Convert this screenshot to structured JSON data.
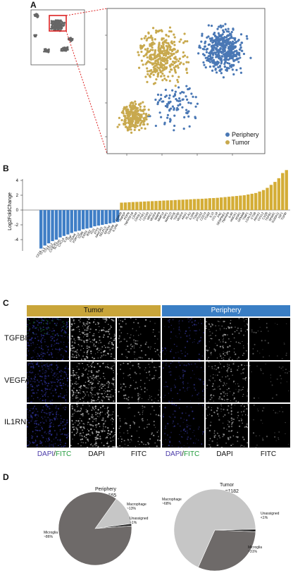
{
  "panels": {
    "a": "A",
    "b": "B",
    "c": "C",
    "d": "D"
  },
  "panel_a": {
    "legend": [
      {
        "label": "Periphery",
        "color": "#4a78b5"
      },
      {
        "label": "Tumor",
        "color": "#c8a94e"
      }
    ]
  },
  "panel_b": {
    "ylabel": "Log2FoldChange",
    "yticks": [
      "4",
      "2",
      "0",
      "-2",
      "-4"
    ],
    "colors": {
      "negative": "#3f7ec6",
      "positive": "#d4ad36"
    },
    "genes_neg": [
      "CD14",
      "CCL3",
      "CCL4",
      "CCL2",
      "CX3CR1",
      "SLC2A5",
      "CXCL8",
      "IL1B",
      "TNF",
      "ITGAM",
      "P2RY12",
      "CD86",
      "EGR3",
      "IER2",
      "FOS",
      "ATF3",
      "HAVCR2",
      "SELPLG",
      "GPR34",
      "S100A8",
      "IL1RN"
    ],
    "genes_pos": [
      "ADAM9",
      "ANPEP",
      "PDPN",
      "TNFRSF1B",
      "CD44",
      "CHI3L1",
      "LYVE1",
      "CD163",
      "MRC1",
      "VEGFA",
      "MMP9",
      "MMP14",
      "SPP1",
      "MARCO",
      "APOE",
      "TGFBI",
      "VEGFA",
      "ARG1",
      "PLAU",
      "IL1RN",
      "TGM2",
      "PTGS2",
      "CD274",
      "ITGB2",
      "IL10",
      "CCL18",
      "FN1",
      "SERPINE1",
      "TNFAIP6",
      "IL4R",
      "HMOX1",
      "MSR1",
      "GPNMB",
      "TIMP1",
      "LGALS3",
      "CTSB",
      "ANXA1",
      "CXCL2",
      "C1QB",
      "TGFB1",
      "SPARC",
      "S100A11",
      "IGF1",
      "TGFBI"
    ],
    "chart_data": {
      "type": "bar",
      "ylabel": "Log2FoldChange",
      "ylim": [
        -5,
        6
      ],
      "negative_values": [
        -5.2,
        -4.8,
        -4.5,
        -4.2,
        -4.0,
        -3.7,
        -3.5,
        -3.3,
        -3.1,
        -2.9,
        -2.8,
        -2.6,
        -2.5,
        -2.4,
        -2.2,
        -2.1,
        -2.0,
        -1.9,
        -1.8,
        -1.7,
        -1.6
      ],
      "positive_values": [
        1.0,
        1.02,
        1.05,
        1.08,
        1.1,
        1.12,
        1.15,
        1.18,
        1.2,
        1.22,
        1.25,
        1.28,
        1.3,
        1.32,
        1.35,
        1.38,
        1.4,
        1.42,
        1.45,
        1.48,
        1.5,
        1.52,
        1.55,
        1.6,
        1.62,
        1.65,
        1.7,
        1.75,
        1.8,
        1.85,
        1.9,
        1.95,
        2.0,
        2.1,
        2.2,
        2.3,
        2.5,
        2.7,
        3.0,
        3.4,
        3.8,
        4.3,
        5.0,
        5.4
      ]
    }
  },
  "panel_c": {
    "headers": {
      "tumor": "Tumor",
      "periphery": "Periphery"
    },
    "header_colors": {
      "tumor": "#c9a53a",
      "periphery": "#3a7ec4"
    },
    "rows": [
      "TGFBI",
      "VEGFA",
      "IL1RN"
    ],
    "footer": {
      "dapi_a": "DAPI",
      "slash": "/",
      "fitc_a": "FITC",
      "dapi": "DAPI",
      "fitc": "FITC"
    }
  },
  "panel_d": {
    "periphery": {
      "title": "Periphery",
      "n": "n",
      "n_sub": "(cells)",
      "n_val": "=665",
      "macrophage": "Macrophage",
      "macrophage_pct": "~13%",
      "unassigned": "Unassigned",
      "unassigned_pct": "~1%",
      "microglia": "Microglia",
      "microglia_pct": "~86%"
    },
    "tumor": {
      "title": "Tumor",
      "n": "n",
      "n_sub": "(cells)",
      "n_val": "=1182",
      "macrophage": "Macrophage",
      "macrophage_pct": "~68%",
      "unassigned": "Unassigned",
      "unassigned_pct": "<1%",
      "microglia": "Microglia",
      "microglia_pct": "~31%"
    },
    "chart_data": [
      {
        "type": "pie",
        "title": "Periphery",
        "slices": [
          {
            "name": "Microglia",
            "value": 86
          },
          {
            "name": "Macrophage",
            "value": 13
          },
          {
            "name": "Unassigned",
            "value": 1
          }
        ]
      },
      {
        "type": "pie",
        "title": "Tumor",
        "slices": [
          {
            "name": "Macrophage",
            "value": 68
          },
          {
            "name": "Microglia",
            "value": 31
          },
          {
            "name": "Unassigned",
            "value": 1
          }
        ]
      }
    ],
    "colors": {
      "microglia": "#6e6a69",
      "macrophage": "#c6c6c6",
      "unassigned": "#222222"
    }
  }
}
